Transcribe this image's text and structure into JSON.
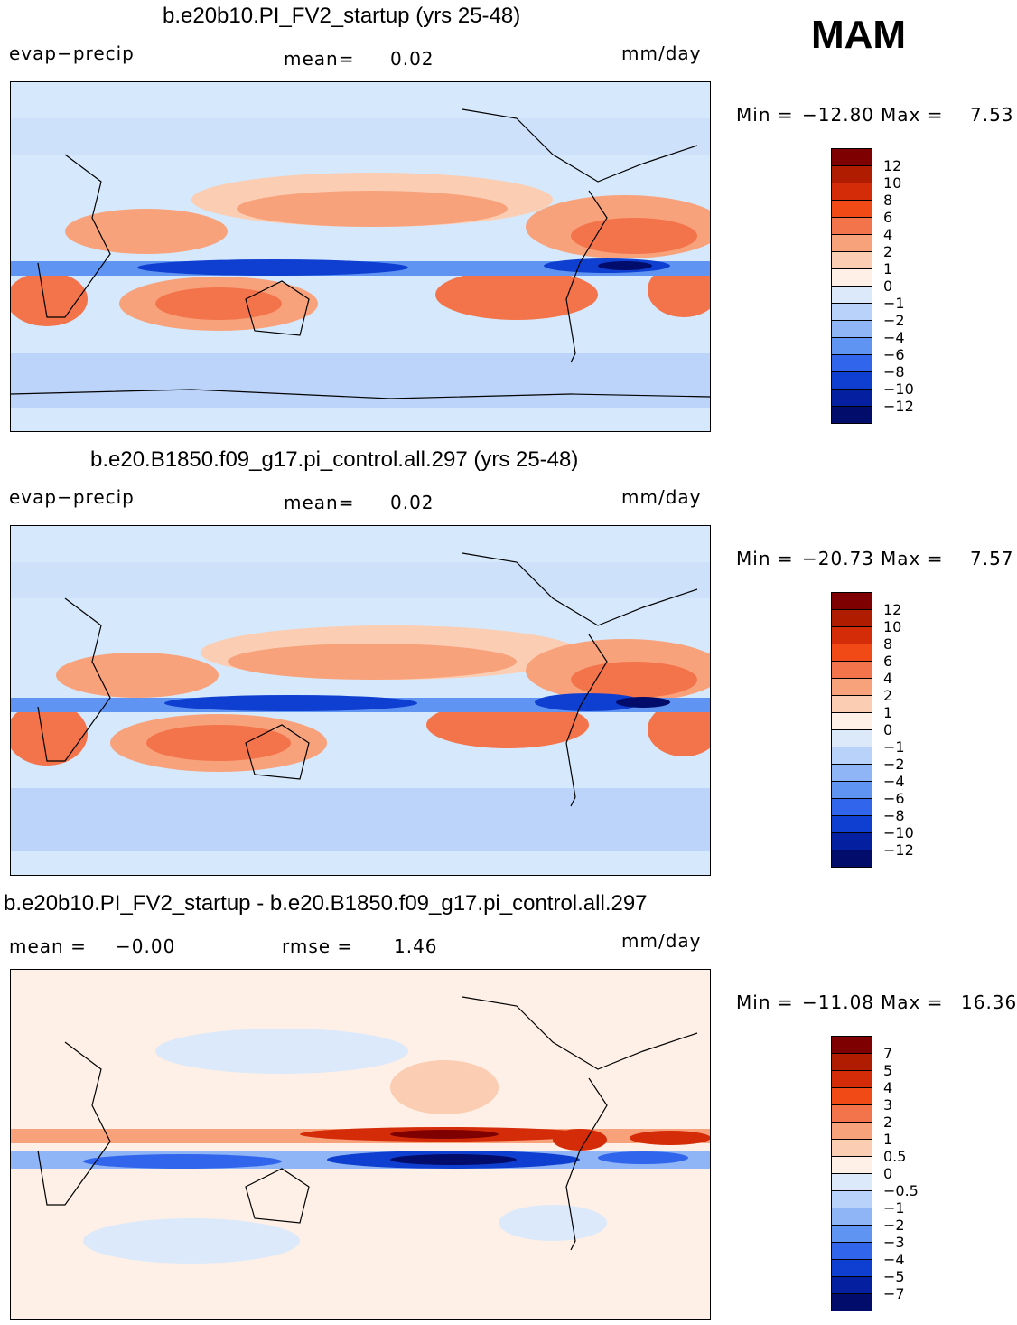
{
  "season": "MAM",
  "panels": [
    {
      "title": "b.e20b10.PI_FV2_startup (yrs 25-48)",
      "variable": "evap−precip",
      "stat1_label": "mean=",
      "stat1_value": "0.02",
      "stat2_label": "",
      "stat2_value": "",
      "units": "mm/day",
      "min_label": "Min  =",
      "min_value": "−12.80",
      "max_label": "Max  =",
      "max_value": "7.53",
      "colorbar_levels": [
        "12",
        "10",
        "8",
        "6",
        "4",
        "2",
        "1",
        "0",
        "−1",
        "−2",
        "−4",
        "−6",
        "−8",
        "−10",
        "−12"
      ]
    },
    {
      "title": "b.e20.B1850.f09_g17.pi_control.all.297 (yrs 25-48)",
      "variable": "evap−precip",
      "stat1_label": "mean=",
      "stat1_value": "0.02",
      "stat2_label": "",
      "stat2_value": "",
      "units": "mm/day",
      "min_label": "Min  =",
      "min_value": "−20.73",
      "max_label": "Max  =",
      "max_value": "7.57",
      "colorbar_levels": [
        "12",
        "10",
        "8",
        "6",
        "4",
        "2",
        "1",
        "0",
        "−1",
        "−2",
        "−4",
        "−6",
        "−8",
        "−10",
        "−12"
      ]
    },
    {
      "title": "b.e20b10.PI_FV2_startup - b.e20.B1850.f09_g17.pi_control.all.297",
      "variable": "",
      "stat1_label": "mean  =",
      "stat1_value": "−0.00",
      "stat2_label": "rmse  =",
      "stat2_value": "1.46",
      "units": "mm/day",
      "min_label": "Min  =",
      "min_value": "−11.08",
      "max_label": "Max  =",
      "max_value": "16.36",
      "colorbar_levels": [
        "7",
        "5",
        "4",
        "3",
        "2",
        "1",
        "0.5",
        "0",
        "−0.5",
        "−1",
        "−2",
        "−3",
        "−4",
        "−5",
        "−7"
      ]
    }
  ],
  "colorbar_colors": [
    "#7f0000",
    "#b01c00",
    "#d42c08",
    "#f24a16",
    "#f3734a",
    "#f8a27c",
    "#fbcdb2",
    "#fef0e6",
    "#dbe9fb",
    "#b9d2f9",
    "#8fb5f6",
    "#5f94f2",
    "#3165ec",
    "#0f3fd0",
    "#041fa0",
    "#020c6a"
  ]
}
